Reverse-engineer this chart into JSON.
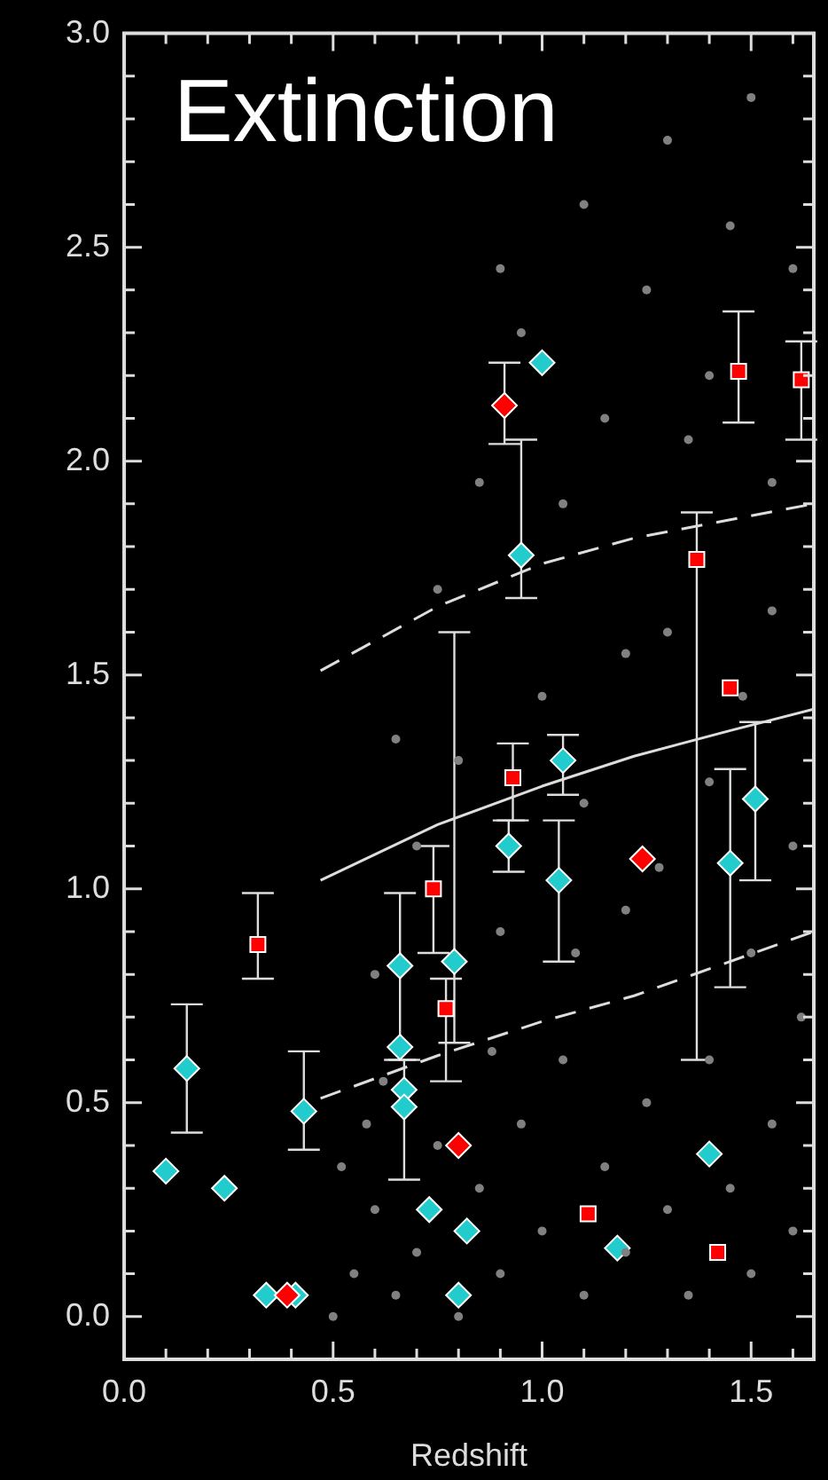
{
  "chart_data": {
    "type": "scatter",
    "title": "Extinction",
    "xlabel": "Redshift",
    "xlim": [
      0,
      1.65
    ],
    "ylim": [
      -0.1,
      3.0
    ],
    "xticks": [
      {
        "value": 0,
        "label": "0.0"
      },
      {
        "value": 0.1,
        "label": null
      },
      {
        "value": 0.2,
        "label": null
      },
      {
        "value": 0.3,
        "label": null
      },
      {
        "value": 0.4,
        "label": null
      },
      0.5,
      {
        "value": 0.6,
        "label": null
      },
      {
        "value": 0.7,
        "label": null
      },
      {
        "value": 0.8,
        "label": null
      },
      {
        "value": 0.9,
        "label": null
      },
      {
        "value": 1,
        "label": "1.0"
      },
      {
        "value": 1.1,
        "label": null
      },
      {
        "value": 1.2,
        "label": null
      },
      {
        "value": 1.3,
        "label": null
      },
      {
        "value": 1.4,
        "label": null
      },
      1.5,
      {
        "value": 1.6,
        "label": null
      }
    ],
    "yticks": [
      {
        "value": 0,
        "label": "0.0"
      },
      {
        "value": 0.1,
        "label": null
      },
      {
        "value": 0.2,
        "label": null
      },
      {
        "value": 0.3,
        "label": null
      },
      {
        "value": 0.4,
        "label": null
      },
      0.5,
      {
        "value": 0.6,
        "label": null
      },
      {
        "value": 0.7,
        "label": null
      },
      {
        "value": 0.8,
        "label": null
      },
      {
        "value": 0.9,
        "label": null
      },
      {
        "value": 1,
        "label": "1.0"
      },
      {
        "value": 1.1,
        "label": null
      },
      {
        "value": 1.2,
        "label": null
      },
      {
        "value": 1.3,
        "label": null
      },
      {
        "value": 1.4,
        "label": null
      },
      1.5,
      {
        "value": 1.6,
        "label": null
      },
      {
        "value": 1.7,
        "label": null
      },
      {
        "value": 1.8,
        "label": null
      },
      {
        "value": 1.9,
        "label": null
      },
      {
        "value": 2,
        "label": "2.0"
      },
      {
        "value": 2.1,
        "label": null
      },
      {
        "value": 2.2,
        "label": null
      },
      {
        "value": 2.3,
        "label": null
      },
      {
        "value": 2.4,
        "label": null
      },
      2.5,
      {
        "value": 2.6,
        "label": null
      },
      {
        "value": 2.7,
        "label": null
      },
      {
        "value": 2.8,
        "label": null
      },
      {
        "value": 2.9,
        "label": null
      },
      {
        "value": 3,
        "label": "3.0"
      }
    ],
    "grid": false,
    "legend": false,
    "series": [
      {
        "type": "scatter",
        "color": "#808080",
        "marker": "circle",
        "x": [
          0.5,
          0.55,
          0.6,
          0.52,
          0.65,
          0.7,
          0.75,
          0.62,
          0.8,
          0.85,
          0.9,
          0.95,
          1.0,
          1.05,
          1.1,
          1.15,
          1.2,
          1.25,
          1.3,
          1.35,
          1.4,
          1.45,
          1.5,
          1.55,
          1.6,
          1.62,
          0.6,
          0.7,
          0.8,
          0.9,
          1.0,
          1.1,
          1.2,
          1.3,
          1.4,
          1.5,
          1.55,
          1.6,
          0.75,
          0.85,
          0.95,
          1.05,
          1.15,
          1.25,
          1.35,
          1.45,
          1.55,
          1.6,
          1.1,
          1.3,
          1.5,
          0.9,
          0.65,
          1.2,
          1.4,
          0.58,
          0.88,
          1.08,
          1.28,
          1.48
        ],
        "values": [
          0.0,
          0.1,
          0.25,
          0.35,
          0.05,
          0.15,
          0.4,
          0.55,
          0.0,
          0.3,
          0.1,
          0.45,
          0.2,
          0.6,
          0.05,
          0.35,
          0.15,
          0.5,
          0.25,
          0.05,
          0.6,
          0.3,
          0.1,
          0.45,
          0.2,
          0.7,
          0.8,
          1.1,
          1.3,
          0.9,
          1.45,
          1.2,
          0.95,
          1.6,
          1.25,
          0.85,
          1.65,
          1.1,
          1.7,
          1.95,
          2.3,
          1.9,
          2.1,
          2.4,
          2.05,
          2.55,
          1.95,
          2.45,
          2.6,
          2.75,
          2.85,
          2.45,
          1.35,
          1.55,
          2.2,
          0.45,
          0.62,
          0.85,
          1.05,
          1.45
        ]
      },
      {
        "type": "line",
        "color": "#dddddd",
        "line_style": "solid",
        "x": [
          0.47,
          0.75,
          1.0,
          1.22,
          1.45,
          1.65
        ],
        "values": [
          1.02,
          1.15,
          1.24,
          1.31,
          1.37,
          1.42
        ]
      },
      {
        "type": "line",
        "color": "#dddddd",
        "line_style": "dashed",
        "x": [
          0.47,
          0.75,
          1.0,
          1.22,
          1.65
        ],
        "values": [
          1.51,
          1.66,
          1.76,
          1.82,
          1.9
        ]
      },
      {
        "type": "line",
        "color": "#dddddd",
        "line_style": "dashed",
        "x": [
          0.47,
          0.75,
          1.0,
          1.22,
          1.65
        ],
        "values": [
          0.51,
          0.61,
          0.69,
          0.75,
          0.9
        ]
      },
      {
        "type": "scatter",
        "color": "#ff0000",
        "marker": "square",
        "x": [
          0.32,
          0.74,
          0.77,
          0.93,
          1.11,
          1.37,
          1.45,
          1.42,
          1.47,
          1.62
        ],
        "values": [
          0.87,
          1.0,
          0.72,
          1.26,
          0.24,
          1.77,
          1.47,
          0.15,
          2.21,
          2.19
        ],
        "errors": [
          [
            0.79,
            0.99
          ],
          [
            0.85,
            1.1
          ],
          [
            0.55,
            0.79
          ],
          [
            1.16,
            1.34
          ],
          null,
          [
            0.6,
            1.88
          ],
          null,
          null,
          [
            2.09,
            2.35
          ],
          [
            2.05,
            2.28
          ]
        ]
      },
      {
        "type": "scatter",
        "color": "#ff0000",
        "marker": "diamond",
        "x": [
          0.91,
          0.8,
          0.39,
          1.24
        ],
        "values": [
          2.13,
          0.4,
          0.05,
          1.07
        ],
        "errors": [
          [
            2.04,
            2.23
          ],
          null,
          null,
          null
        ]
      },
      {
        "type": "scatter",
        "color": "#22cccc",
        "marker": "diamond",
        "x": [
          0.1,
          0.15,
          0.24,
          0.34,
          0.41,
          0.43,
          0.66,
          0.66,
          0.67,
          0.67,
          0.79,
          0.73,
          0.82,
          0.8,
          1.0,
          0.95,
          0.92,
          1.05,
          1.04,
          1.18,
          1.45,
          1.51,
          1.4
        ],
        "values": [
          0.34,
          0.58,
          0.3,
          0.05,
          0.05,
          0.48,
          0.82,
          0.63,
          0.53,
          0.49,
          0.83,
          0.25,
          0.2,
          0.05,
          2.23,
          1.78,
          1.1,
          1.3,
          1.02,
          0.16,
          1.06,
          1.21,
          0.38
        ],
        "errors": [
          null,
          [
            0.43,
            0.73
          ],
          null,
          null,
          null,
          [
            0.39,
            0.62
          ],
          [
            0.6,
            0.99
          ],
          null,
          null,
          [
            0.32,
            0.6
          ],
          [
            0.64,
            1.6
          ],
          null,
          null,
          null,
          null,
          [
            1.68,
            2.05
          ],
          [
            1.04,
            1.16
          ],
          [
            1.22,
            1.36
          ],
          [
            0.83,
            1.16
          ],
          null,
          [
            0.77,
            1.28
          ],
          [
            1.02,
            1.39
          ],
          null
        ]
      }
    ]
  }
}
